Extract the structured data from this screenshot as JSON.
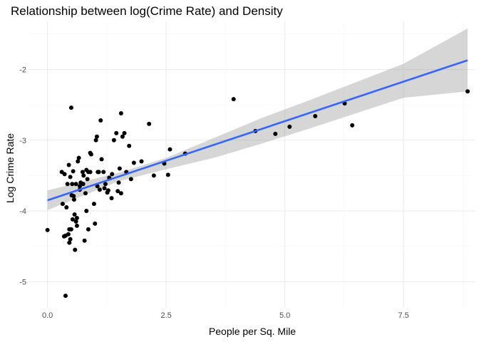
{
  "chart_data": {
    "type": "scatter",
    "title": "Relationship between log(Crime Rate) and Density",
    "xlabel": "People per Sq. Mile",
    "ylabel": "Log Crime Rate",
    "xlim": [
      -0.4,
      9.0
    ],
    "ylim": [
      -5.37,
      -1.32
    ],
    "xticks": [
      0.0,
      2.5,
      5.0,
      7.5
    ],
    "xtick_labels": [
      "0.0",
      "2.5",
      "5.0",
      "7.5"
    ],
    "yticks": [
      -5,
      -4,
      -3,
      -2
    ],
    "ytick_labels": [
      "-5",
      "-4",
      "-3",
      "-2"
    ],
    "grid": true,
    "legend": "none",
    "colors": {
      "points": "#000000",
      "fit_line": "#3366FF",
      "ribbon": "#999999",
      "grid_major": "#EBEBEB",
      "grid_minor": "#F5F5F5"
    },
    "points": {
      "x": [
        0.0,
        0.3,
        0.32,
        0.36,
        0.38,
        0.42,
        0.45,
        0.46,
        0.48,
        0.5,
        0.51,
        0.52,
        0.54,
        0.55,
        0.56,
        0.58,
        0.6,
        0.62,
        0.64,
        0.66,
        0.68,
        0.72,
        0.74,
        0.76,
        0.78,
        0.8,
        0.82,
        0.84,
        0.86,
        0.9,
        0.92,
        1.0,
        1.02,
        1.04,
        1.06,
        1.08,
        1.1,
        1.12,
        1.14,
        1.18,
        1.22,
        1.26,
        1.28,
        1.3,
        1.36,
        1.4,
        1.45,
        1.5,
        1.52,
        1.55,
        1.58,
        1.62,
        1.66,
        1.72,
        1.76,
        1.82,
        1.98,
        2.14,
        2.24,
        2.46,
        2.54,
        2.58,
        2.9,
        3.92,
        4.38,
        4.8,
        5.1,
        5.64,
        6.26,
        6.42,
        8.85,
        0.35,
        0.4,
        0.44,
        0.48,
        0.53,
        0.57,
        0.62,
        0.68,
        0.75,
        0.82,
        0.9,
        0.98,
        1.05,
        0.5,
        1.2,
        1.35,
        1.48,
        1.55,
        0.38,
        0.46,
        0.6,
        0.7,
        0.86
      ],
      "y": [
        -4.27,
        -3.45,
        -3.9,
        -3.48,
        -5.2,
        -3.62,
        -3.35,
        -4.26,
        -3.52,
        -2.54,
        -3.78,
        -3.62,
        -3.44,
        -3.79,
        -3.84,
        -4.55,
        -3.62,
        -4.21,
        -3.3,
        -3.25,
        -3.65,
        -3.62,
        -3.45,
        -3.5,
        -4.42,
        -3.75,
        -4.0,
        -3.55,
        -4.26,
        -3.45,
        -3.2,
        -4.18,
        -3.0,
        -2.95,
        -3.45,
        -3.45,
        -3.7,
        -2.72,
        -3.27,
        -3.45,
        -3.62,
        -3.74,
        -3.71,
        -3.53,
        -3.48,
        -3.0,
        -2.9,
        -3.6,
        -3.4,
        -2.62,
        -2.95,
        -2.9,
        -3.45,
        -3.08,
        -3.55,
        -3.32,
        -3.3,
        -2.77,
        -3.5,
        -3.33,
        -3.49,
        -3.13,
        -3.19,
        -2.42,
        -2.87,
        -2.91,
        -2.81,
        -2.66,
        -2.48,
        -2.79,
        -2.31,
        -4.36,
        -3.95,
        -4.33,
        -4.4,
        -4.12,
        -4.05,
        -4.1,
        -3.7,
        -3.62,
        -3.42,
        -3.18,
        -3.9,
        -3.65,
        -4.26,
        -3.68,
        -3.82,
        -3.72,
        -3.75,
        -4.35,
        -4.45,
        -4.15,
        -3.6,
        -3.45
      ]
    },
    "fit": {
      "x_start": 0.0,
      "x_end": 8.85,
      "y_start": -3.85,
      "y_end": -1.87,
      "ribbon_x": [
        0.0,
        1.5,
        2.5,
        3.5,
        4.5,
        5.5,
        6.5,
        7.5,
        8.85
      ],
      "ribbon_low": [
        -3.99,
        -3.58,
        -3.41,
        -3.25,
        -3.05,
        -2.84,
        -2.62,
        -2.4,
        -2.31
      ],
      "ribbon_high": [
        -3.71,
        -3.46,
        -3.25,
        -2.97,
        -2.69,
        -2.44,
        -2.18,
        -1.92,
        -1.42
      ]
    }
  }
}
